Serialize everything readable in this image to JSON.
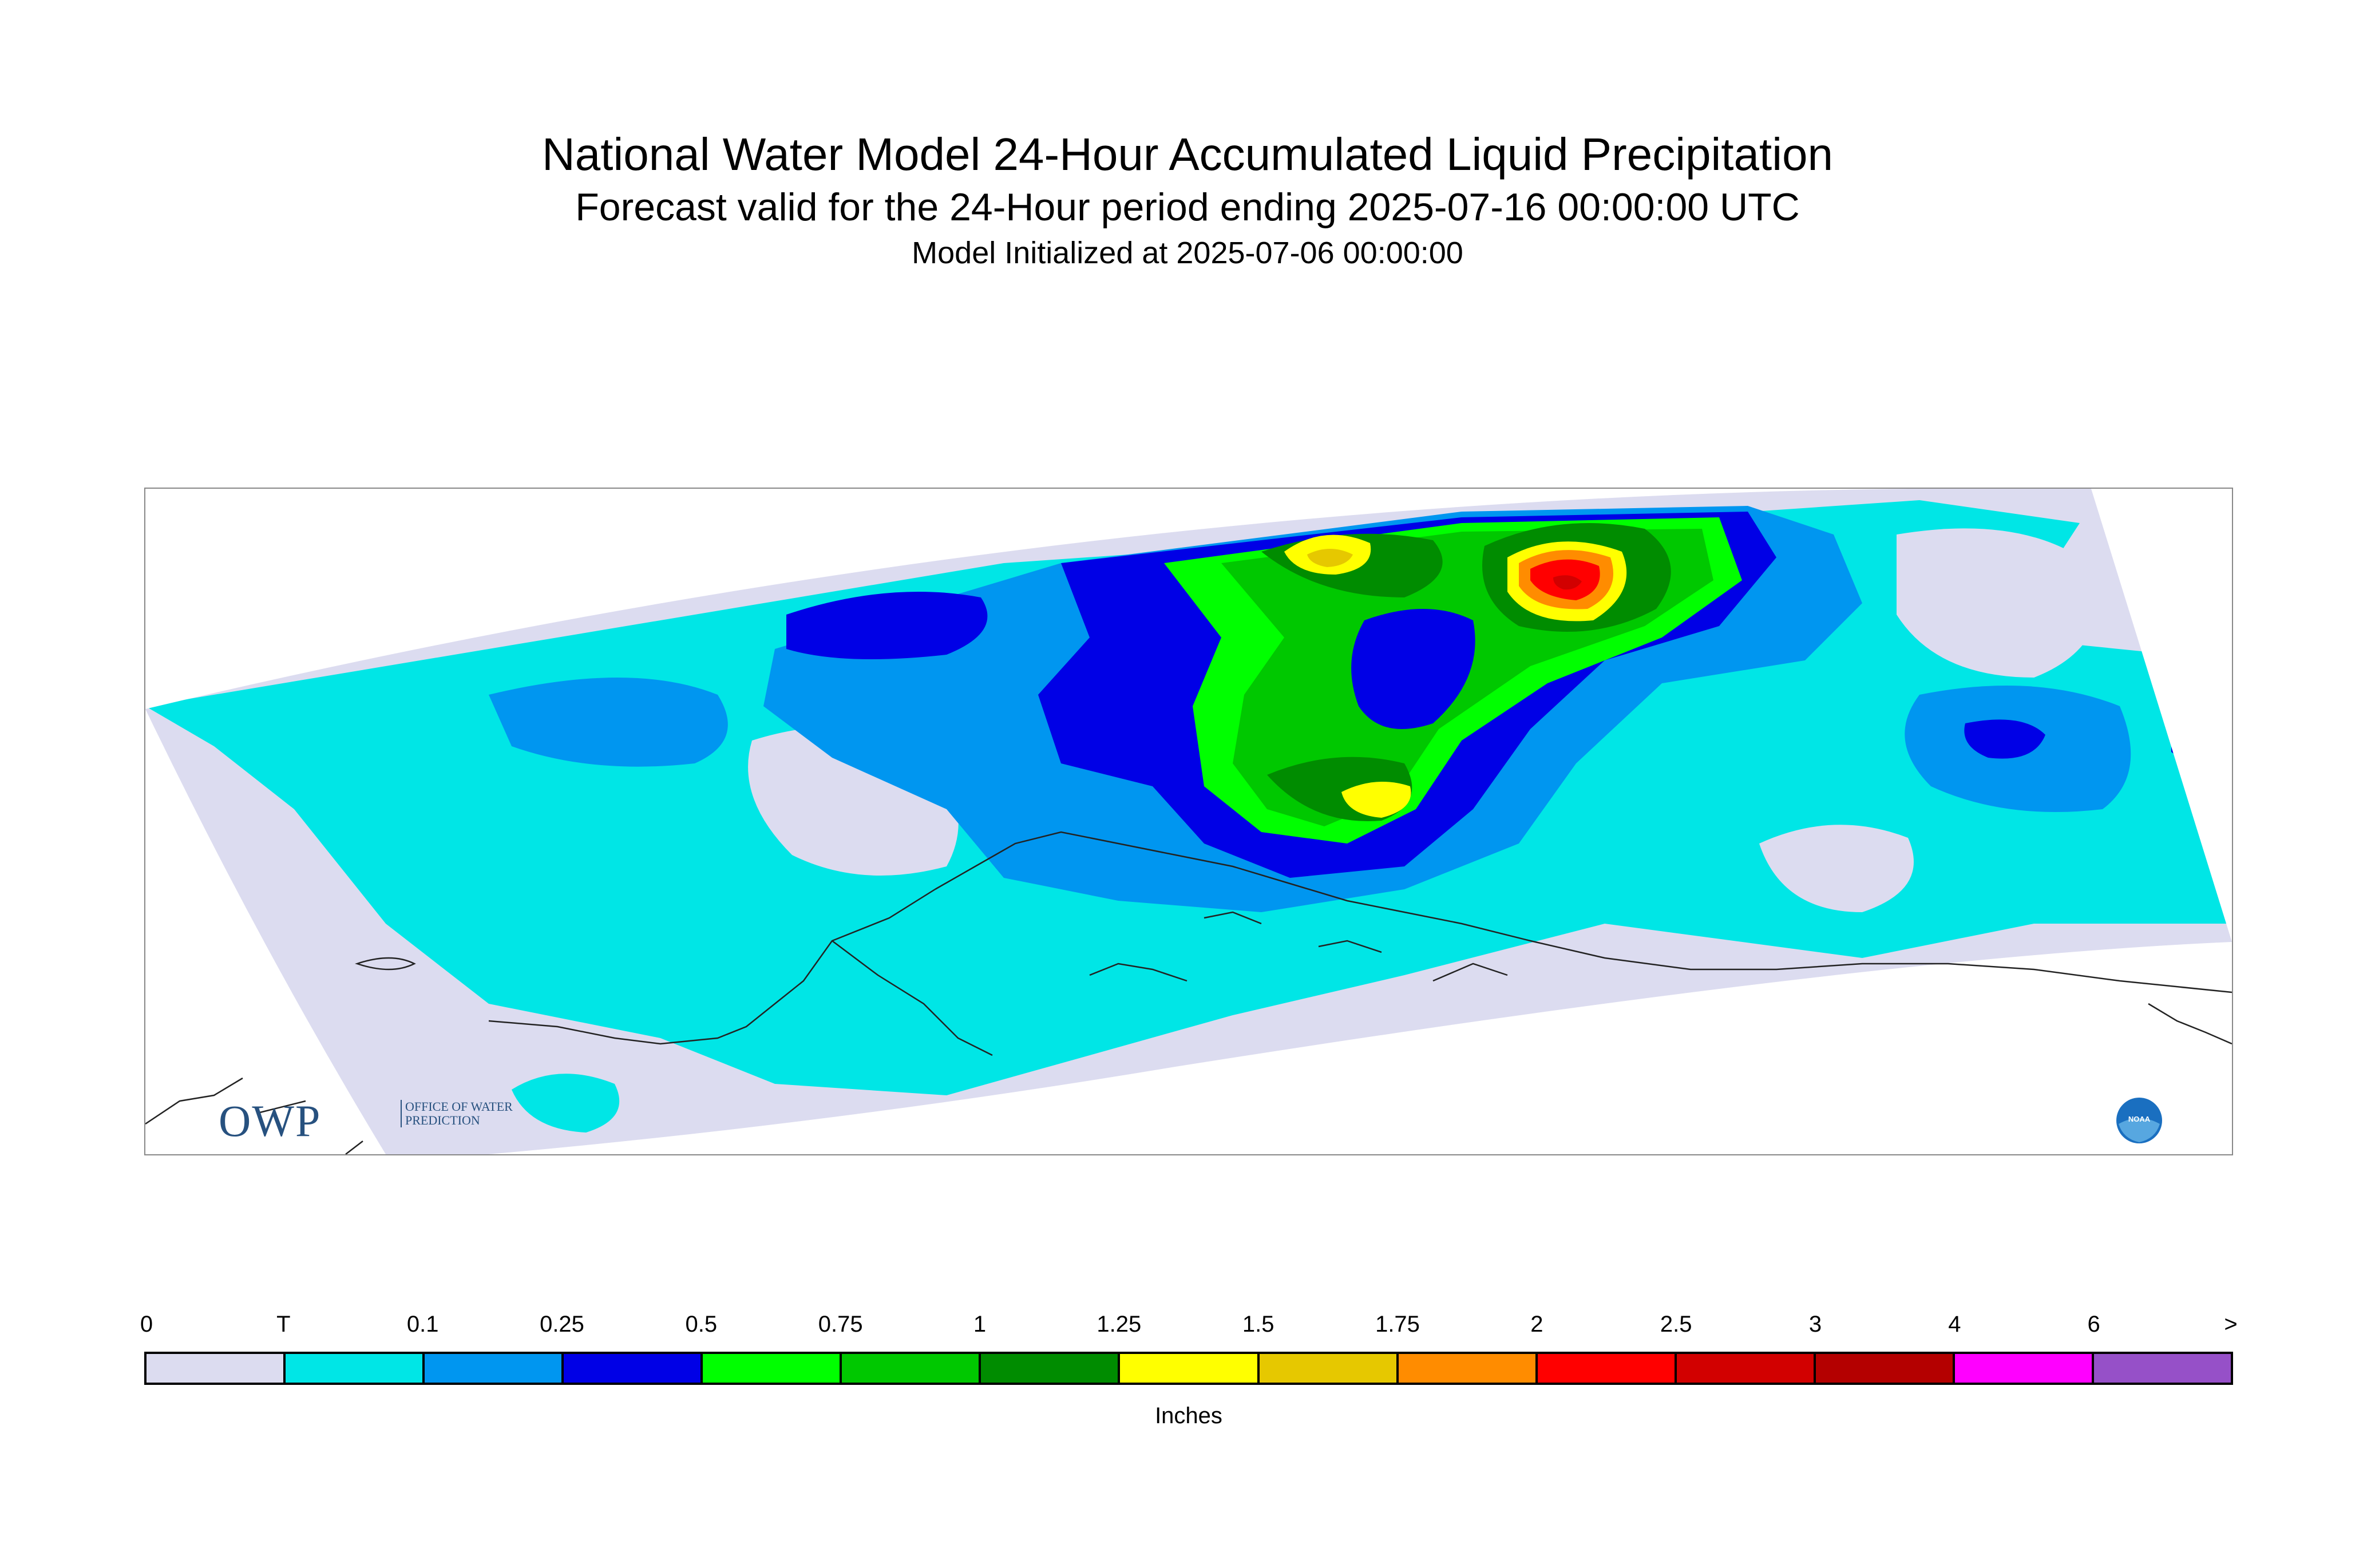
{
  "header": {
    "title": "National Water Model 24-Hour Accumulated Liquid Precipitation",
    "subtitle": "Forecast valid for the 24-Hour period ending 2025-07-16 00:00:00 UTC",
    "init_line": "Model Initialized at 2025-07-06 00:00:00"
  },
  "logos": {
    "owp_letters": "OWP",
    "owp_office": "Office of Water Prediction",
    "noaa": "NOAA"
  },
  "legend": {
    "units": "Inches",
    "tick_labels": [
      "0",
      "T",
      "0.1",
      "0.25",
      "0.5",
      "0.75",
      "1",
      "1.25",
      "1.5",
      "1.75",
      "2",
      "2.5",
      "3",
      "4",
      "6",
      ">"
    ],
    "bins": [
      {
        "label": "0 - T",
        "color": "#dcdcf0"
      },
      {
        "label": "T - 0.1",
        "color": "#00e6e6"
      },
      {
        "label": "0.1 - 0.25",
        "color": "#0096f0"
      },
      {
        "label": "0.25 - 0.5",
        "color": "#0000e6"
      },
      {
        "label": "0.5 - 0.75",
        "color": "#00ff00"
      },
      {
        "label": "0.75 - 1",
        "color": "#00c800"
      },
      {
        "label": "1 - 1.25",
        "color": "#008c00"
      },
      {
        "label": "1.25 - 1.5",
        "color": "#ffff00"
      },
      {
        "label": "1.5 - 1.75",
        "color": "#e6c800"
      },
      {
        "label": "1.75 - 2",
        "color": "#ff8c00"
      },
      {
        "label": "2 - 2.5",
        "color": "#ff0000"
      },
      {
        "label": "2.5 - 3",
        "color": "#d20000"
      },
      {
        "label": "3 - 4",
        "color": "#b40000"
      },
      {
        "label": "4 - 6",
        "color": "#ff00ff"
      },
      {
        "label": "6 - >",
        "color": "#9650c8"
      }
    ]
  }
}
